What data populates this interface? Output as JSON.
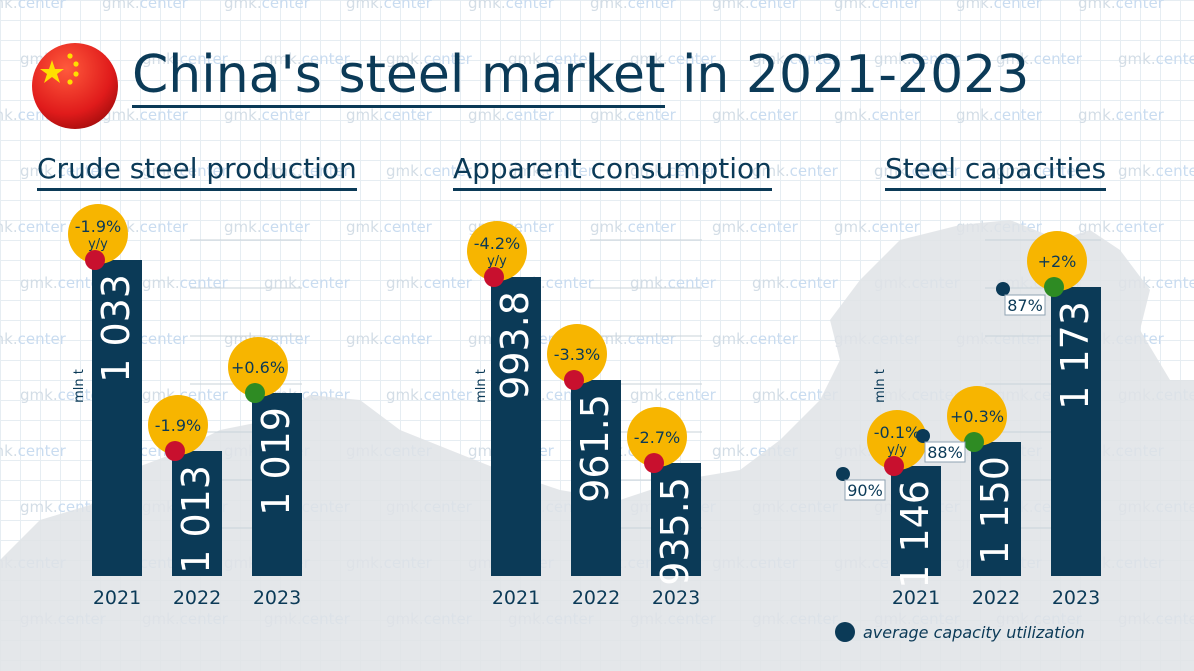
{
  "title": {
    "underlined": "China's steel market",
    "rest": " in 2021-2023"
  },
  "watermark": "gmk.center",
  "legend": {
    "label": "average capacity utilization"
  },
  "colors": {
    "bar": "#0b3a57",
    "badge": "#f7b500",
    "dot_negative": "#c8102e",
    "dot_positive": "#2e8b23",
    "text": "#0b3a57"
  },
  "chart_data": [
    {
      "type": "bar",
      "title": "Crude steel production",
      "ylabel": "mln t",
      "categories": [
        "2021",
        "2022",
        "2023"
      ],
      "values": [
        1033,
        1013,
        1019
      ],
      "value_labels": [
        "1 033",
        "1 013",
        "1 019"
      ],
      "changes": [
        "-1.9%",
        "-1.9%",
        "+0.6%"
      ],
      "change_sublabels": [
        "y/y",
        "",
        ""
      ],
      "change_signs": [
        "negative",
        "negative",
        "positive"
      ]
    },
    {
      "type": "bar",
      "title": "Apparent consumption",
      "ylabel": "mln t",
      "categories": [
        "2021",
        "2022",
        "2023"
      ],
      "values": [
        993.8,
        961.5,
        935.5
      ],
      "value_labels": [
        "993.8",
        "961.5",
        "935.5"
      ],
      "changes": [
        "-4.2%",
        "-3.3%",
        "-2.7%"
      ],
      "change_sublabels": [
        "y/y",
        "",
        ""
      ],
      "change_signs": [
        "negative",
        "negative",
        "negative"
      ]
    },
    {
      "type": "bar",
      "title": "Steel capacities",
      "ylabel": "mln t",
      "categories": [
        "2021",
        "2022",
        "2023"
      ],
      "values": [
        1146,
        1150,
        1173
      ],
      "value_labels": [
        "1 146",
        "1 150",
        "1 173"
      ],
      "changes": [
        "-0.1%",
        "+0.3%",
        "+2%"
      ],
      "change_sublabels": [
        "y/y",
        "",
        ""
      ],
      "change_signs": [
        "negative",
        "positive",
        "positive"
      ],
      "utilization": [
        "90%",
        "88%",
        "87%"
      ]
    }
  ]
}
